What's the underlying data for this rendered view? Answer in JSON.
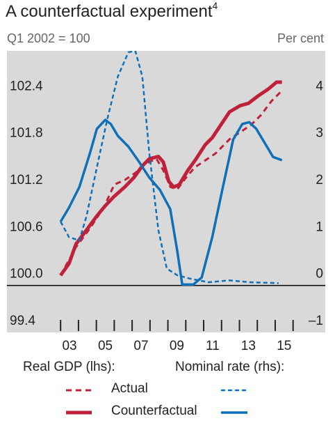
{
  "chart_data": {
    "type": "line",
    "title": "A counterfactual experiment",
    "title_sup": "4",
    "subtitle_left": "Q1 2002 = 100",
    "subtitle_right": "Per cent",
    "xlim": [
      2000,
      2017.8
    ],
    "ylim": [
      99.4,
      103.0
    ],
    "y2lim": [
      -1,
      5
    ],
    "xticks": [
      2003,
      2004,
      2005,
      2006,
      2007,
      2008,
      2009,
      2010,
      2011,
      2012,
      2013,
      2014,
      2015,
      2016
    ],
    "xlabels": [
      {
        "value": 2003.5,
        "label": "03"
      },
      {
        "value": 2005.5,
        "label": "05"
      },
      {
        "value": 2007.5,
        "label": "07"
      },
      {
        "value": 2009.5,
        "label": "09"
      },
      {
        "value": 2011.5,
        "label": "11"
      },
      {
        "value": 2013.5,
        "label": "13"
      },
      {
        "value": 2015.5,
        "label": "15"
      }
    ],
    "yticks": [
      99.4,
      {
        "value": 100,
        "label": "100.0"
      },
      100.6,
      101.2,
      101.8,
      102.4
    ],
    "y2ticks": [
      {
        "value": -1,
        "label": "–1"
      },
      0,
      1,
      2,
      3,
      4
    ],
    "hline": 100,
    "groups": [
      {
        "name": "Real GDP (lhs):",
        "axis": "y",
        "color": "#c0213a",
        "series": [
          {
            "name": "Actual",
            "style": "dashed",
            "x": [
              2003.0,
              2003.86,
              2004.64,
              2005.42,
              2006.0,
              2006.59,
              2007.18,
              2007.77,
              2008.36,
              2008.75,
              2009.14,
              2009.53,
              2009.91,
              2010.5,
              2011.09,
              2011.67,
              2012.45,
              2013.04,
              2013.63,
              2014.21,
              2014.8,
              2015.38
            ],
            "values": [
              100.13,
              100.49,
              100.73,
              101.0,
              101.29,
              101.35,
              101.44,
              101.56,
              101.62,
              101.47,
              101.26,
              101.23,
              101.35,
              101.51,
              101.6,
              101.69,
              101.87,
              101.96,
              102.05,
              102.18,
              102.36,
              102.49
            ]
          },
          {
            "name": "Counterfactual",
            "style": "solid",
            "x": [
              2003.0,
              2003.47,
              2003.86,
              2004.45,
              2005.03,
              2005.5,
              2006.0,
              2006.59,
              2007.1,
              2007.57,
              2007.96,
              2008.47,
              2008.74,
              2009.05,
              2009.32,
              2009.64,
              2010.11,
              2010.58,
              2011.09,
              2011.48,
              2011.98,
              2012.45,
              2013.04,
              2013.51,
              2014.02,
              2014.6,
              2015.07,
              2015.38
            ],
            "values": [
              100.13,
              100.28,
              100.53,
              100.71,
              100.89,
              101.02,
              101.14,
              101.26,
              101.38,
              101.53,
              101.62,
              101.65,
              101.58,
              101.33,
              101.26,
              101.29,
              101.47,
              101.62,
              101.8,
              101.89,
              102.06,
              102.22,
              102.3,
              102.33,
              102.42,
              102.51,
              102.6,
              102.6
            ]
          }
        ]
      },
      {
        "name": "Nominal rate (rhs):",
        "axis": "y2",
        "color": "#0f6fb8",
        "series": [
          {
            "style": "dashed",
            "x": [
              2003.0,
              2003.47,
              2004.05,
              2004.45,
              2005.03,
              2005.62,
              2006.2,
              2006.79,
              2007.18,
              2007.57,
              2007.96,
              2008.47,
              2008.94,
              2009.52,
              2010.3,
              2011.28,
              2012.45,
              2013.63,
              2015.19
            ],
            "values": [
              1.36,
              1.03,
              0.96,
              1.48,
              2.52,
              3.56,
              4.45,
              4.97,
              5.0,
              4.45,
              2.82,
              1.18,
              0.36,
              0.22,
              0.14,
              0.07,
              0.11,
              0.07,
              0.05
            ]
          },
          {
            "style": "solid",
            "x": [
              2003.0,
              2003.47,
              2004.05,
              2004.64,
              2005.03,
              2005.5,
              2005.81,
              2006.2,
              2006.79,
              2007.38,
              2007.96,
              2008.55,
              2009.13,
              2009.52,
              2009.8,
              2010.42,
              2010.89,
              2011.48,
              2012.06,
              2012.65,
              2013.16,
              2013.55,
              2013.94,
              2014.41,
              2014.88,
              2015.38
            ],
            "values": [
              1.36,
              1.66,
              2.1,
              2.82,
              3.34,
              3.53,
              3.44,
              3.19,
              2.96,
              2.64,
              2.3,
              2.04,
              1.63,
              0.74,
              0.02,
              0.02,
              0.17,
              1.03,
              2.07,
              3.11,
              3.44,
              3.48,
              3.34,
              3.04,
              2.74,
              2.67
            ]
          }
        ]
      }
    ]
  }
}
